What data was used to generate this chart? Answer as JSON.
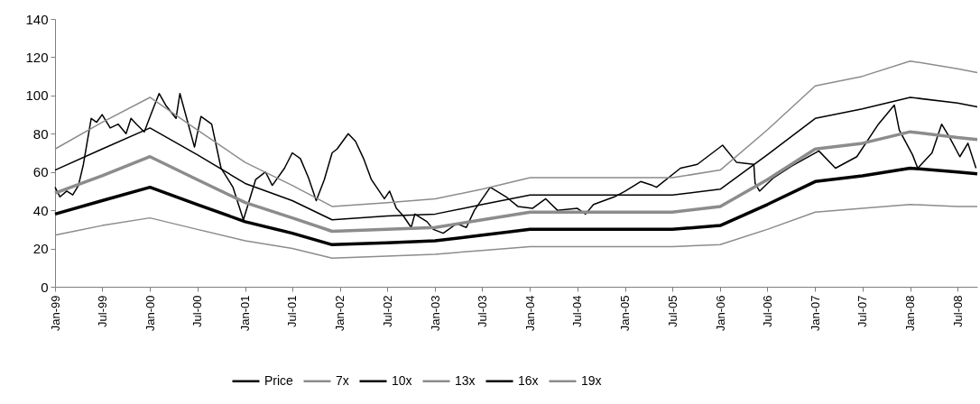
{
  "chart_data": {
    "type": "line",
    "xlim": [
      "1999-01-01",
      "2008-09-15"
    ],
    "xticks": [
      {
        "value": "1999-01",
        "label": "Jan-99"
      },
      {
        "value": "1999-07",
        "label": "Jul-99"
      },
      {
        "value": "2000-01",
        "label": "Jan-00"
      },
      {
        "value": "2000-07",
        "label": "Jul-00"
      },
      {
        "value": "2001-01",
        "label": "Jan-01"
      },
      {
        "value": "2001-07",
        "label": "Jul-01"
      },
      {
        "value": "2002-01",
        "label": "Jan-02"
      },
      {
        "value": "2002-07",
        "label": "Jul-02"
      },
      {
        "value": "2003-01",
        "label": "Jan-03"
      },
      {
        "value": "2003-07",
        "label": "Jul-03"
      },
      {
        "value": "2004-01",
        "label": "Jan-04"
      },
      {
        "value": "2004-07",
        "label": "Jul-04"
      },
      {
        "value": "2005-01",
        "label": "Jan-05"
      },
      {
        "value": "2005-07",
        "label": "Jul-05"
      },
      {
        "value": "2006-01",
        "label": "Jan-06"
      },
      {
        "value": "2006-07",
        "label": "Jul-06"
      },
      {
        "value": "2007-01",
        "label": "Jan-07"
      },
      {
        "value": "2007-07",
        "label": "Jul-07"
      },
      {
        "value": "2008-01",
        "label": "Jan-08"
      },
      {
        "value": "2008-07",
        "label": "Jul-08"
      }
    ],
    "ylim": [
      0,
      140
    ],
    "yticks": [
      0,
      20,
      40,
      60,
      80,
      100,
      120,
      140
    ],
    "grid": false,
    "legend": "bottom",
    "marker": "none",
    "line_style": "solid",
    "series": [
      {
        "name": "Price",
        "color": "#000000",
        "x": [
          "1999-01-01",
          "1999-01-20",
          "1999-02-15",
          "1999-03-10",
          "1999-04-01",
          "1999-04-20",
          "1999-05-20",
          "1999-06-10",
          "1999-07-01",
          "1999-08-01",
          "1999-09-01",
          "1999-10-01",
          "1999-10-20",
          "1999-11-10",
          "1999-12-10",
          "2000-01-10",
          "2000-02-05",
          "2000-03-01",
          "2000-04-10",
          "2000-04-25",
          "2000-05-25",
          "2000-06-20",
          "2000-07-15",
          "2000-08-25",
          "2000-09-30",
          "2000-11-15",
          "2000-12-25",
          "2001-02-10",
          "2001-03-20",
          "2001-04-15",
          "2001-06-01",
          "2001-07-01",
          "2001-08-01",
          "2001-09-01",
          "2001-10-01",
          "2001-11-01",
          "2001-12-01",
          "2001-12-20",
          "2002-02-01",
          "2002-03-01",
          "2002-04-01",
          "2002-05-01",
          "2002-06-20",
          "2002-07-10",
          "2002-08-05",
          "2002-09-01",
          "2002-10-01",
          "2002-10-15",
          "2002-12-01",
          "2002-12-25",
          "2003-02-01",
          "2003-03-25",
          "2003-05-01",
          "2003-06-01",
          "2003-08-01",
          "2003-10-01",
          "2003-11-15",
          "2004-01-10",
          "2004-03-01",
          "2004-04-15",
          "2004-07-01",
          "2004-08-01",
          "2004-09-01",
          "2004-11-20",
          "2005-01-01",
          "2005-03-01",
          "2005-04-15",
          "2005-05-01",
          "2005-08-01",
          "2005-10-05",
          "2006-01-10",
          "2006-03-05",
          "2006-05-10",
          "2006-05-15",
          "2006-06-01",
          "2006-07-25",
          "2006-10-01",
          "2007-01-15",
          "2007-03-20",
          "2007-06-10",
          "2007-09-01",
          "2007-11-01",
          "2007-11-20",
          "2008-01-10",
          "2008-01-30",
          "2008-03-25",
          "2008-05-01",
          "2008-06-01",
          "2008-07-10",
          "2008-08-10",
          "2008-09-10"
        ],
        "values": [
          52,
          47,
          50,
          48,
          53,
          64,
          88,
          86,
          90,
          83,
          85,
          80,
          88,
          85,
          81,
          92,
          101,
          95,
          88,
          101,
          86,
          73,
          89,
          85,
          62,
          52,
          35,
          56,
          60,
          53,
          62,
          70,
          67,
          57,
          45,
          56,
          70,
          72,
          80,
          76,
          67,
          56,
          46,
          50,
          41,
          37,
          31,
          38,
          34,
          30,
          28,
          33,
          31,
          40,
          52,
          47,
          42,
          41,
          46,
          40,
          41,
          38,
          43,
          47,
          50,
          55,
          53,
          52,
          62,
          64,
          74,
          65,
          64,
          54,
          50,
          57,
          63,
          71,
          62,
          68,
          85,
          95,
          82,
          69,
          62,
          70,
          85,
          78,
          68,
          75,
          62
        ]
      },
      {
        "name": "7x",
        "color": "#8c8c8c",
        "x": [
          "1999-01-01",
          "1999-07-01",
          "2000-01-01",
          "2000-07-01",
          "2001-01-01",
          "2001-07-01",
          "2001-12-01",
          "2002-07-01",
          "2003-01-01",
          "2003-07-01",
          "2004-01-01",
          "2004-07-01",
          "2005-01-01",
          "2005-07-01",
          "2006-01-01",
          "2006-07-01",
          "2007-01-01",
          "2007-07-01",
          "2008-01-01",
          "2008-07-01",
          "2008-09-15"
        ],
        "values": [
          27,
          32,
          36,
          30,
          24,
          20,
          15,
          16,
          17,
          19,
          21,
          21,
          21,
          21,
          22,
          30,
          39,
          41,
          43,
          42,
          42
        ]
      },
      {
        "name": "10x",
        "color": "#000000",
        "x": [
          "1999-01-01",
          "1999-07-01",
          "2000-01-01",
          "2000-07-01",
          "2001-01-01",
          "2001-07-01",
          "2001-12-01",
          "2002-07-01",
          "2003-01-01",
          "2003-07-01",
          "2004-01-01",
          "2004-07-01",
          "2005-01-01",
          "2005-07-01",
          "2006-01-01",
          "2006-07-01",
          "2007-01-01",
          "2007-07-01",
          "2008-01-01",
          "2008-07-01",
          "2008-09-15"
        ],
        "values": [
          38,
          45,
          52,
          43,
          34,
          28,
          22,
          23,
          24,
          27,
          30,
          30,
          30,
          30,
          32,
          43,
          55,
          58,
          62,
          60,
          59
        ]
      },
      {
        "name": "13x",
        "color": "#8c8c8c",
        "x": [
          "1999-01-01",
          "1999-07-01",
          "2000-01-01",
          "2000-07-01",
          "2001-01-01",
          "2001-07-01",
          "2001-12-01",
          "2002-07-01",
          "2003-01-01",
          "2003-07-01",
          "2004-01-01",
          "2004-07-01",
          "2005-01-01",
          "2005-07-01",
          "2006-01-01",
          "2006-07-01",
          "2007-01-01",
          "2007-07-01",
          "2008-01-01",
          "2008-07-01",
          "2008-09-15"
        ],
        "values": [
          49,
          58,
          68,
          56,
          44,
          36,
          29,
          30,
          31,
          35,
          39,
          39,
          39,
          39,
          42,
          56,
          72,
          75,
          81,
          78,
          77
        ]
      },
      {
        "name": "16x",
        "color": "#000000",
        "x": [
          "1999-01-01",
          "1999-07-01",
          "2000-01-01",
          "2000-07-01",
          "2001-01-01",
          "2001-07-01",
          "2001-12-01",
          "2002-07-01",
          "2003-01-01",
          "2003-07-01",
          "2004-01-01",
          "2004-07-01",
          "2005-01-01",
          "2005-07-01",
          "2006-01-01",
          "2006-07-01",
          "2007-01-01",
          "2007-07-01",
          "2008-01-01",
          "2008-07-01",
          "2008-09-15"
        ],
        "values": [
          61,
          72,
          83,
          69,
          54,
          45,
          35,
          37,
          38,
          43,
          48,
          48,
          48,
          48,
          51,
          69,
          88,
          93,
          99,
          96,
          94
        ]
      },
      {
        "name": "19x",
        "color": "#8c8c8c",
        "x": [
          "1999-01-01",
          "1999-07-01",
          "2000-01-01",
          "2000-07-01",
          "2001-01-01",
          "2001-07-01",
          "2001-12-01",
          "2002-07-01",
          "2003-01-01",
          "2003-07-01",
          "2004-01-01",
          "2004-07-01",
          "2005-01-01",
          "2005-07-01",
          "2006-01-01",
          "2006-07-01",
          "2007-01-01",
          "2007-07-01",
          "2008-01-01",
          "2008-07-01",
          "2008-09-15"
        ],
        "values": [
          72,
          86,
          99,
          82,
          65,
          53,
          42,
          44,
          46,
          51,
          57,
          57,
          57,
          57,
          61,
          82,
          105,
          110,
          118,
          114,
          112
        ]
      }
    ]
  }
}
